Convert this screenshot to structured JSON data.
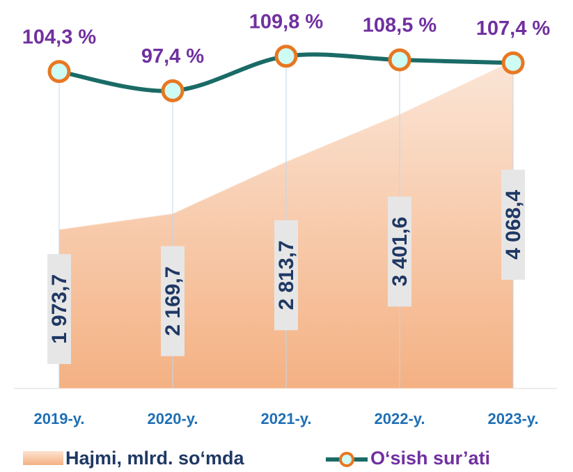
{
  "chart_data": {
    "type": "area-line",
    "categories": [
      "2019-y.",
      "2020-y.",
      "2021-y.",
      "2022-y.",
      "2023-y."
    ],
    "series": [
      {
        "name": "Hajmi, mlrd. so‘mda",
        "type": "area",
        "color": "#f4b183",
        "values": [
          1973.7,
          2169.7,
          2813.7,
          3401.6,
          4068.4
        ],
        "value_labels": [
          "1 973,7",
          "2 169,7",
          "2 813,7",
          "3 401,6",
          "4 068,4"
        ]
      },
      {
        "name": "O‘sish sur’ati",
        "type": "line",
        "axis": "y2",
        "color": "#1a6b66",
        "marker_color": "#e87722",
        "values": [
          104.3,
          97.4,
          109.8,
          108.5,
          107.4
        ],
        "value_labels": [
          "104,3 %",
          "97,4 %",
          "109,8 %",
          "108,5 %",
          "107,4 %"
        ]
      }
    ],
    "ylim": [
      0,
      4100
    ],
    "y2lim": [
      90,
      115
    ]
  }
}
